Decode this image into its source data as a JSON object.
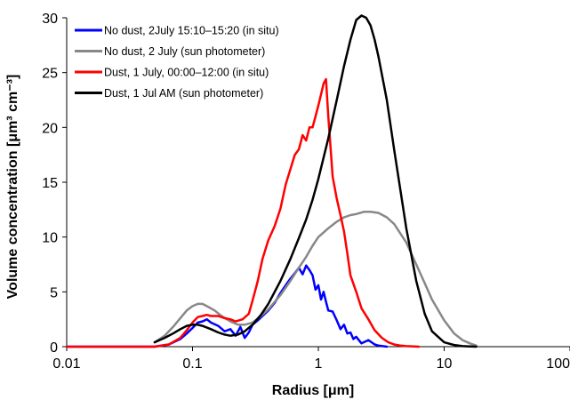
{
  "chart_data": {
    "type": "line",
    "title": "",
    "xlabel": "Radius [μm]",
    "ylabel": "Volume concentration [μm³ cm⁻³]",
    "xscale": "log",
    "xlim": [
      0.01,
      100
    ],
    "ylim": [
      0,
      30
    ],
    "xticks": [
      0.01,
      0.1,
      1,
      10,
      100
    ],
    "xtick_labels": [
      "0.01",
      "0.1",
      "1",
      "10",
      "100"
    ],
    "yticks": [
      0,
      5,
      10,
      15,
      20,
      25,
      30
    ],
    "ytick_labels": [
      "0",
      "5",
      "10",
      "15",
      "20",
      "25",
      "30"
    ],
    "grid": false,
    "legend_position": "top-left",
    "series": [
      {
        "name": "No dust, 2July 15:10–15:20 (in situ)",
        "color": "#0000ff",
        "x": [
          0.01,
          0.05,
          0.065,
          0.08,
          0.09,
          0.1,
          0.11,
          0.12,
          0.13,
          0.14,
          0.16,
          0.18,
          0.2,
          0.22,
          0.24,
          0.26,
          0.28,
          0.3,
          0.33,
          0.36,
          0.4,
          0.45,
          0.5,
          0.55,
          0.6,
          0.65,
          0.7,
          0.75,
          0.8,
          0.85,
          0.9,
          0.95,
          1.0,
          1.05,
          1.1,
          1.15,
          1.2,
          1.3,
          1.4,
          1.5,
          1.6,
          1.7,
          1.8,
          1.9,
          2.0,
          2.2,
          2.5,
          2.8,
          3.0,
          3.5
        ],
        "values": [
          0,
          0,
          0.2,
          0.7,
          1.2,
          1.7,
          2.2,
          2.3,
          2.5,
          2.2,
          1.9,
          1.4,
          1.6,
          1.0,
          1.8,
          0.8,
          1.3,
          2.0,
          2.4,
          2.8,
          3.3,
          4.0,
          4.9,
          5.6,
          6.2,
          6.7,
          7.2,
          6.6,
          7.4,
          7.0,
          6.5,
          5.2,
          5.6,
          4.3,
          5.0,
          4.1,
          3.3,
          3.2,
          2.4,
          1.6,
          2.0,
          1.2,
          1.3,
          0.7,
          0.9,
          0.3,
          0.6,
          0.2,
          0.1,
          0
        ]
      },
      {
        "name": "No dust, 2 July (sun photometer)",
        "color": "#888888",
        "x": [
          0.05,
          0.06,
          0.07,
          0.08,
          0.09,
          0.1,
          0.11,
          0.12,
          0.13,
          0.15,
          0.17,
          0.2,
          0.23,
          0.26,
          0.3,
          0.35,
          0.4,
          0.5,
          0.6,
          0.7,
          0.8,
          0.9,
          1.0,
          1.2,
          1.4,
          1.6,
          1.8,
          2.0,
          2.3,
          2.6,
          3.0,
          3.5,
          4.0,
          5.0,
          6.0,
          7.0,
          8.0,
          10.0,
          12.0,
          14.0,
          16.0,
          18.0
        ],
        "values": [
          0.4,
          1.0,
          1.8,
          2.6,
          3.3,
          3.7,
          3.9,
          3.9,
          3.7,
          3.3,
          2.8,
          2.3,
          2.0,
          2.0,
          2.2,
          2.8,
          3.4,
          4.7,
          6.0,
          7.2,
          8.2,
          9.2,
          10.0,
          10.8,
          11.4,
          11.8,
          12.0,
          12.1,
          12.3,
          12.3,
          12.2,
          11.8,
          11.2,
          9.5,
          7.5,
          5.8,
          4.3,
          2.4,
          1.2,
          0.6,
          0.3,
          0.1
        ]
      },
      {
        "name": "Dust, 1 July, 00:00–12:00 (in situ)",
        "color": "#ff0000",
        "x": [
          0.01,
          0.05,
          0.065,
          0.08,
          0.09,
          0.1,
          0.11,
          0.12,
          0.13,
          0.14,
          0.16,
          0.18,
          0.2,
          0.22,
          0.25,
          0.28,
          0.3,
          0.33,
          0.36,
          0.4,
          0.45,
          0.5,
          0.55,
          0.6,
          0.65,
          0.7,
          0.75,
          0.8,
          0.85,
          0.9,
          0.95,
          1.0,
          1.05,
          1.1,
          1.15,
          1.2,
          1.3,
          1.4,
          1.5,
          1.6,
          1.7,
          1.8,
          2.0,
          2.2,
          2.5,
          2.8,
          3.2,
          3.6,
          4.0,
          4.5,
          5.0,
          6.3
        ],
        "values": [
          0,
          0,
          0.2,
          0.8,
          1.5,
          2.2,
          2.7,
          2.8,
          2.9,
          2.8,
          2.8,
          2.6,
          2.5,
          2.3,
          2.5,
          3.0,
          4.2,
          6.0,
          8.0,
          9.7,
          11.0,
          12.6,
          14.8,
          16.2,
          17.5,
          18.0,
          19.3,
          18.8,
          20.0,
          20.0,
          21.0,
          22.0,
          23.0,
          24.0,
          24.4,
          21.0,
          15.5,
          13.5,
          12.0,
          10.5,
          8.5,
          6.5,
          5.0,
          3.5,
          2.5,
          1.5,
          0.8,
          0.4,
          0.2,
          0.1,
          0.05,
          0
        ]
      },
      {
        "name": "Dust, 1 Jul AM (sun photometer)",
        "color": "#000000",
        "x": [
          0.05,
          0.06,
          0.07,
          0.08,
          0.09,
          0.1,
          0.11,
          0.12,
          0.14,
          0.16,
          0.18,
          0.2,
          0.23,
          0.26,
          0.3,
          0.35,
          0.4,
          0.5,
          0.6,
          0.7,
          0.8,
          0.9,
          1.0,
          1.2,
          1.4,
          1.6,
          1.8,
          2.0,
          2.2,
          2.4,
          2.6,
          2.8,
          3.0,
          3.5,
          4.0,
          5.0,
          6.0,
          7.0,
          8.0,
          10.0,
          12.0,
          14.0,
          16.0,
          18.0
        ],
        "values": [
          0.4,
          0.8,
          1.2,
          1.6,
          1.9,
          2.0,
          2.0,
          1.9,
          1.6,
          1.3,
          1.1,
          1.0,
          1.1,
          1.4,
          2.0,
          2.9,
          3.9,
          6.0,
          8.0,
          9.9,
          11.6,
          13.4,
          15.3,
          19.0,
          22.5,
          25.6,
          28.0,
          29.8,
          30.2,
          30.0,
          29.3,
          28.0,
          26.5,
          22.5,
          18.0,
          10.8,
          6.0,
          3.0,
          1.4,
          0.4,
          0.15,
          0.05,
          0.02,
          0
        ]
      }
    ]
  }
}
